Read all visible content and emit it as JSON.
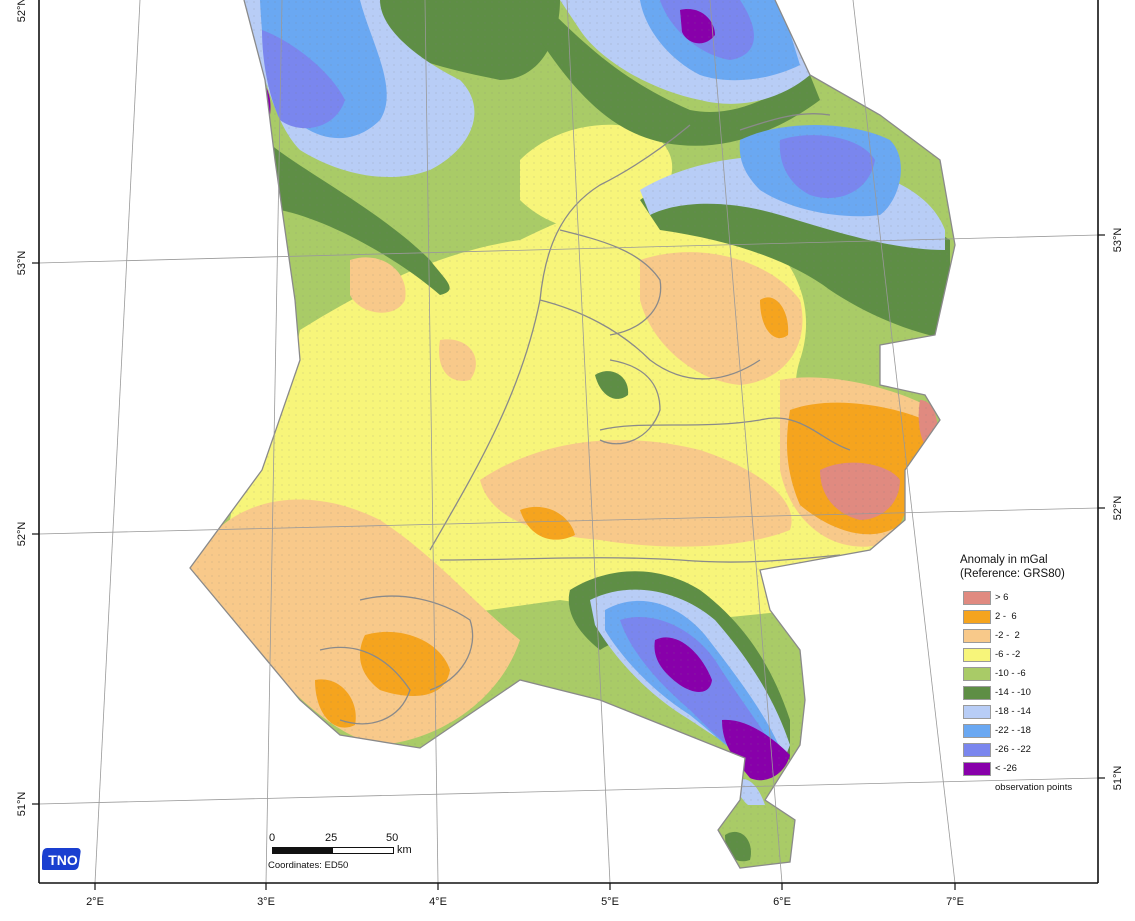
{
  "map": {
    "lat_labels_left": [
      "52°N",
      "53°N",
      "51°N",
      "52°N"
    ],
    "lat_labels_right": [
      "53°N",
      "52°N",
      "51°N"
    ],
    "lon_labels": [
      "2°E",
      "3°E",
      "4°E",
      "5°E",
      "6°E",
      "7°E"
    ],
    "top_left_label": "52°N"
  },
  "legend": {
    "title_line1": "Anomaly in mGal",
    "title_line2": "(Reference: GRS80)",
    "classes": [
      {
        "label": "> 6",
        "color": "#e08a80"
      },
      {
        "label": "2 -  6",
        "color": "#f5a41e"
      },
      {
        "label": "-2 -  2",
        "color": "#f8c98a"
      },
      {
        "label": "-6 - -2",
        "color": "#f7f57a"
      },
      {
        "label": "-10 - -6",
        "color": "#a9cb67"
      },
      {
        "label": "-14 - -10",
        "color": "#5e8e45"
      },
      {
        "label": "-18 - -14",
        "color": "#b8cdf6"
      },
      {
        "label": "-22 - -18",
        "color": "#6aa8f2"
      },
      {
        "label": "-26 - -22",
        "color": "#7a86ee"
      },
      {
        "label": "< -26",
        "color": "#8800aa"
      }
    ],
    "observation_label": "observation points"
  },
  "scale": {
    "ticks": [
      "0",
      "25",
      "50"
    ],
    "unit": "km",
    "coordinates": "Coordinates: ED50"
  },
  "logo": {
    "text": "TNO",
    "color": "#1a3fd0"
  }
}
